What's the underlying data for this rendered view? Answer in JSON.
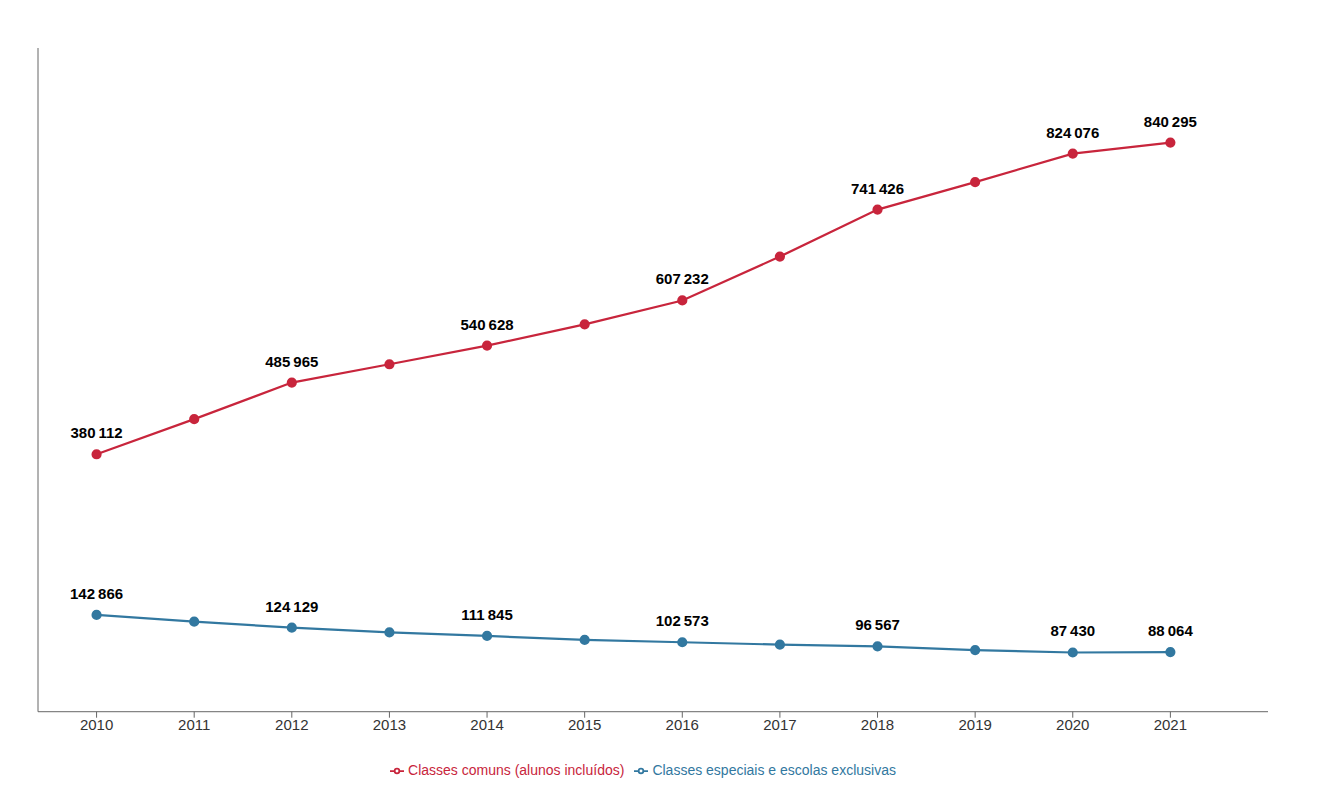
{
  "chart_data": {
    "type": "line",
    "x": [
      2010,
      2011,
      2012,
      2013,
      2014,
      2015,
      2016,
      2017,
      2018,
      2019,
      2020,
      2021
    ],
    "series": [
      {
        "name": "Classes especiais e escolas exclusivas",
        "color": "#3278a0",
        "marker": "circle",
        "values": [
          142866,
          133000,
          124129,
          117000,
          111845,
          106000,
          102573,
          99000,
          96567,
          91000,
          87430,
          88064
        ],
        "value_labels": [
          "142 866",
          null,
          "124 129",
          null,
          "111 845",
          null,
          "102 573",
          null,
          "96 567",
          null,
          "87 430",
          "88 064"
        ]
      },
      {
        "name": "Classes comuns (alunos incluídos)",
        "color": "#c8253c",
        "marker": "circle",
        "values": [
          380112,
          432000,
          485965,
          513000,
          540628,
          572000,
          607232,
          672000,
          741426,
          782000,
          824076,
          840295
        ],
        "value_labels": [
          "380 112",
          null,
          "485 965",
          null,
          "540 628",
          null,
          "607 232",
          null,
          "741 426",
          null,
          "824 076",
          "840 295"
        ]
      }
    ],
    "xlim": [
      2009.4,
      2022
    ],
    "xticks": [
      2010,
      2011,
      2012,
      2013,
      2014,
      2015,
      2016,
      2017,
      2018,
      2019,
      2020,
      2021
    ],
    "ylim": [
      0,
      980000
    ],
    "yticks": [],
    "grid": false,
    "legend": "bottom",
    "tick_labels": "x"
  }
}
